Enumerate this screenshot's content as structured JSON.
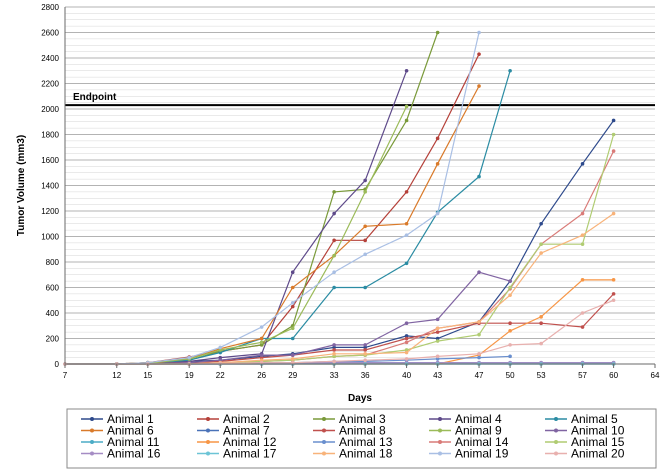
{
  "chart_data": {
    "type": "line",
    "title": "",
    "xlabel": "Days",
    "ylabel": "Tumor Volume (mm3)",
    "xlim": [
      7,
      64
    ],
    "ylim": [
      0,
      2800
    ],
    "xticks": [
      7,
      12,
      15,
      19,
      22,
      26,
      29,
      33,
      36,
      40,
      43,
      47,
      50,
      53,
      57,
      60,
      64
    ],
    "yticks": [
      0,
      200,
      400,
      600,
      800,
      1000,
      1200,
      1400,
      1600,
      1800,
      2000,
      2200,
      2400,
      2600,
      2800
    ],
    "grid": true,
    "legend_position": "bottom",
    "annotation": {
      "label": "Endpoint",
      "y": 2030
    },
    "series": [
      {
        "name": "Animal 1",
        "color": "#2e4a8c",
        "points": [
          [
            7,
            0
          ],
          [
            12,
            0
          ],
          [
            15,
            10
          ],
          [
            19,
            20
          ],
          [
            22,
            30
          ],
          [
            26,
            60
          ],
          [
            29,
            80
          ],
          [
            33,
            130
          ],
          [
            36,
            130
          ],
          [
            40,
            220
          ],
          [
            43,
            200
          ],
          [
            47,
            330
          ],
          [
            50,
            650
          ],
          [
            53,
            1100
          ],
          [
            57,
            1570
          ],
          [
            60,
            1910
          ]
        ]
      },
      {
        "name": "Animal 2",
        "color": "#b5413a",
        "points": [
          [
            7,
            0
          ],
          [
            12,
            0
          ],
          [
            15,
            10
          ],
          [
            19,
            55
          ],
          [
            22,
            100
          ],
          [
            26,
            150
          ],
          [
            29,
            450
          ],
          [
            33,
            970
          ],
          [
            36,
            970
          ],
          [
            40,
            1350
          ],
          [
            43,
            1770
          ],
          [
            47,
            2430
          ]
        ]
      },
      {
        "name": "Animal 3",
        "color": "#7a9a3a",
        "points": [
          [
            7,
            0
          ],
          [
            12,
            0
          ],
          [
            15,
            10
          ],
          [
            19,
            30
          ],
          [
            22,
            100
          ],
          [
            26,
            150
          ],
          [
            29,
            300
          ],
          [
            33,
            1350
          ],
          [
            36,
            1370
          ],
          [
            40,
            1910
          ],
          [
            43,
            2600
          ]
        ]
      },
      {
        "name": "Animal 4",
        "color": "#5e4a8a",
        "points": [
          [
            7,
            0
          ],
          [
            12,
            0
          ],
          [
            15,
            5
          ],
          [
            19,
            20
          ],
          [
            22,
            50
          ],
          [
            26,
            80
          ],
          [
            29,
            720
          ],
          [
            33,
            1180
          ],
          [
            36,
            1440
          ],
          [
            40,
            2300
          ]
        ]
      },
      {
        "name": "Animal 5",
        "color": "#2b8ca3",
        "points": [
          [
            7,
            0
          ],
          [
            12,
            0
          ],
          [
            15,
            5
          ],
          [
            19,
            30
          ],
          [
            22,
            90
          ],
          [
            26,
            200
          ],
          [
            29,
            200
          ],
          [
            33,
            600
          ],
          [
            36,
            600
          ],
          [
            40,
            790
          ],
          [
            43,
            1190
          ],
          [
            47,
            1470
          ],
          [
            50,
            2300
          ]
        ]
      },
      {
        "name": "Animal 6",
        "color": "#d97a2a",
        "points": [
          [
            7,
            0
          ],
          [
            12,
            0
          ],
          [
            15,
            10
          ],
          [
            19,
            40
          ],
          [
            22,
            120
          ],
          [
            26,
            200
          ],
          [
            29,
            600
          ],
          [
            33,
            850
          ],
          [
            36,
            1080
          ],
          [
            40,
            1100
          ],
          [
            43,
            1570
          ],
          [
            47,
            2180
          ]
        ]
      },
      {
        "name": "Animal 7",
        "color": "#4a72b8",
        "points": [
          [
            7,
            0
          ],
          [
            12,
            0
          ],
          [
            15,
            0
          ],
          [
            19,
            0
          ],
          [
            22,
            0
          ],
          [
            26,
            10
          ],
          [
            29,
            10
          ],
          [
            33,
            10
          ],
          [
            36,
            10
          ],
          [
            40,
            10
          ],
          [
            43,
            10
          ],
          [
            47,
            10
          ],
          [
            50,
            10
          ],
          [
            53,
            10
          ],
          [
            57,
            10
          ],
          [
            60,
            10
          ]
        ]
      },
      {
        "name": "Animal 8",
        "color": "#c0504d",
        "points": [
          [
            7,
            0
          ],
          [
            12,
            0
          ],
          [
            15,
            5
          ],
          [
            19,
            10
          ],
          [
            22,
            20
          ],
          [
            26,
            50
          ],
          [
            29,
            70
          ],
          [
            33,
            110
          ],
          [
            36,
            110
          ],
          [
            40,
            200
          ],
          [
            43,
            250
          ],
          [
            47,
            320
          ],
          [
            50,
            320
          ],
          [
            53,
            320
          ],
          [
            57,
            290
          ],
          [
            60,
            550
          ]
        ]
      },
      {
        "name": "Animal 9",
        "color": "#9bbb59",
        "points": [
          [
            7,
            0
          ],
          [
            12,
            0
          ],
          [
            15,
            5
          ],
          [
            19,
            40
          ],
          [
            22,
            110
          ],
          [
            26,
            170
          ],
          [
            29,
            280
          ],
          [
            33,
            850
          ],
          [
            36,
            1350
          ],
          [
            40,
            2020
          ]
        ]
      },
      {
        "name": "Animal 10",
        "color": "#8064a2",
        "points": [
          [
            7,
            0
          ],
          [
            12,
            0
          ],
          [
            15,
            0
          ],
          [
            19,
            10
          ],
          [
            22,
            30
          ],
          [
            26,
            70
          ],
          [
            29,
            70
          ],
          [
            33,
            150
          ],
          [
            36,
            150
          ],
          [
            40,
            320
          ],
          [
            43,
            350
          ],
          [
            47,
            720
          ],
          [
            50,
            650
          ]
        ]
      },
      {
        "name": "Animal 11",
        "color": "#4bacc6",
        "points": [
          [
            7,
            0
          ],
          [
            12,
            0
          ],
          [
            15,
            0
          ],
          [
            19,
            0
          ],
          [
            22,
            0
          ],
          [
            26,
            0
          ],
          [
            29,
            0
          ],
          [
            33,
            0
          ],
          [
            36,
            0
          ],
          [
            40,
            0
          ],
          [
            43,
            0
          ],
          [
            47,
            0
          ],
          [
            50,
            0
          ],
          [
            53,
            0
          ],
          [
            57,
            0
          ],
          [
            60,
            0
          ]
        ]
      },
      {
        "name": "Animal 12",
        "color": "#f79646",
        "points": [
          [
            7,
            0
          ],
          [
            12,
            0
          ],
          [
            15,
            0
          ],
          [
            19,
            0
          ],
          [
            22,
            0
          ],
          [
            26,
            0
          ],
          [
            29,
            0
          ],
          [
            33,
            0
          ],
          [
            36,
            0
          ],
          [
            40,
            0
          ],
          [
            43,
            0
          ],
          [
            47,
            70
          ],
          [
            50,
            260
          ],
          [
            53,
            370
          ],
          [
            57,
            660
          ],
          [
            60,
            660
          ]
        ]
      },
      {
        "name": "Animal 13",
        "color": "#6a8fce",
        "points": [
          [
            7,
            0
          ],
          [
            12,
            0
          ],
          [
            15,
            0
          ],
          [
            19,
            0
          ],
          [
            22,
            5
          ],
          [
            26,
            10
          ],
          [
            29,
            10
          ],
          [
            33,
            20
          ],
          [
            36,
            20
          ],
          [
            40,
            30
          ],
          [
            43,
            40
          ],
          [
            47,
            50
          ],
          [
            50,
            60
          ]
        ]
      },
      {
        "name": "Animal 14",
        "color": "#d97b78",
        "points": [
          [
            7,
            0
          ],
          [
            12,
            0
          ],
          [
            15,
            0
          ],
          [
            19,
            0
          ],
          [
            22,
            10
          ],
          [
            26,
            20
          ],
          [
            29,
            30
          ],
          [
            33,
            60
          ],
          [
            36,
            70
          ],
          [
            40,
            170
          ],
          [
            43,
            280
          ],
          [
            47,
            330
          ],
          [
            50,
            590
          ],
          [
            53,
            940
          ],
          [
            57,
            1180
          ],
          [
            60,
            1670
          ]
        ]
      },
      {
        "name": "Animal 15",
        "color": "#b0cc72",
        "points": [
          [
            7,
            0
          ],
          [
            12,
            0
          ],
          [
            15,
            0
          ],
          [
            19,
            0
          ],
          [
            22,
            10
          ],
          [
            26,
            20
          ],
          [
            29,
            30
          ],
          [
            33,
            60
          ],
          [
            36,
            70
          ],
          [
            40,
            110
          ],
          [
            43,
            180
          ],
          [
            47,
            230
          ],
          [
            50,
            600
          ],
          [
            53,
            940
          ],
          [
            57,
            940
          ],
          [
            60,
            1800
          ]
        ]
      },
      {
        "name": "Animal 16",
        "color": "#a58cc4",
        "points": [
          [
            7,
            0
          ],
          [
            12,
            0
          ],
          [
            15,
            0
          ],
          [
            19,
            0
          ],
          [
            22,
            0
          ],
          [
            26,
            0
          ],
          [
            29,
            0
          ],
          [
            33,
            10
          ],
          [
            36,
            10
          ],
          [
            40,
            10
          ],
          [
            43,
            10
          ],
          [
            47,
            10
          ],
          [
            50,
            10
          ],
          [
            53,
            10
          ],
          [
            57,
            10
          ],
          [
            60,
            10
          ]
        ]
      },
      {
        "name": "Animal 17",
        "color": "#6cc4d6",
        "points": [
          [
            7,
            0
          ],
          [
            12,
            0
          ],
          [
            15,
            0
          ],
          [
            19,
            0
          ],
          [
            22,
            0
          ],
          [
            26,
            0
          ],
          [
            29,
            0
          ],
          [
            33,
            0
          ],
          [
            36,
            0
          ],
          [
            40,
            0
          ],
          [
            43,
            0
          ],
          [
            47,
            0
          ],
          [
            50,
            0
          ],
          [
            53,
            0
          ],
          [
            57,
            0
          ],
          [
            60,
            0
          ]
        ]
      },
      {
        "name": "Animal 18",
        "color": "#f8b37a",
        "points": [
          [
            7,
            0
          ],
          [
            12,
            0
          ],
          [
            15,
            0
          ],
          [
            19,
            0
          ],
          [
            22,
            10
          ],
          [
            26,
            30
          ],
          [
            29,
            40
          ],
          [
            33,
            80
          ],
          [
            36,
            80
          ],
          [
            40,
            90
          ],
          [
            43,
            280
          ],
          [
            47,
            330
          ],
          [
            50,
            540
          ],
          [
            53,
            870
          ],
          [
            57,
            1010
          ],
          [
            60,
            1180
          ]
        ]
      },
      {
        "name": "Animal 19",
        "color": "#a9bfe4",
        "points": [
          [
            7,
            0
          ],
          [
            12,
            0
          ],
          [
            15,
            10
          ],
          [
            19,
            50
          ],
          [
            22,
            130
          ],
          [
            26,
            290
          ],
          [
            29,
            480
          ],
          [
            33,
            720
          ],
          [
            36,
            860
          ],
          [
            40,
            1010
          ],
          [
            43,
            1180
          ],
          [
            47,
            2600
          ]
        ]
      },
      {
        "name": "Animal 20",
        "color": "#e8b0ae",
        "points": [
          [
            7,
            0
          ],
          [
            12,
            0
          ],
          [
            15,
            0
          ],
          [
            19,
            0
          ],
          [
            22,
            5
          ],
          [
            26,
            10
          ],
          [
            29,
            10
          ],
          [
            33,
            20
          ],
          [
            36,
            30
          ],
          [
            40,
            40
          ],
          [
            43,
            60
          ],
          [
            47,
            80
          ],
          [
            50,
            150
          ],
          [
            53,
            160
          ],
          [
            57,
            400
          ],
          [
            60,
            500
          ]
        ]
      }
    ]
  }
}
